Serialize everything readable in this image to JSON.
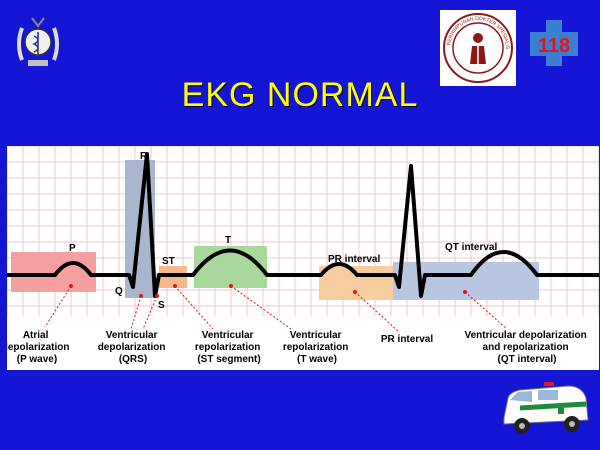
{
  "slide": {
    "title": "EKG NORMAL",
    "background_color": "#1515d6",
    "title_color": "#ffff00"
  },
  "logos": {
    "left": "medical-emblem-icon",
    "center": "doctor-association-seal-icon",
    "right": "emergency-118-logo-icon",
    "bottom_right": "ambulance-icon"
  },
  "center_seal_text": "PERHIMPUNAN DOKTER SPESIALIS",
  "right_logo_text": "118",
  "ekg": {
    "labels": {
      "p": "P",
      "r": "R",
      "q": "Q",
      "s": "S",
      "st": "ST",
      "t": "T",
      "pr_interval": "PR interval",
      "qt_interval": "QT interval"
    },
    "captions": {
      "atrial": [
        "Atrial",
        "depolarization",
        "(P wave)"
      ],
      "qrs": [
        "Ventricular",
        "depolarization",
        "(QRS)"
      ],
      "st": [
        "Ventricular",
        "repolarization",
        "(ST segment)"
      ],
      "t": [
        "Ventricular",
        "repolarization",
        "(T wave)"
      ],
      "pr": [
        "PR interval"
      ],
      "qt": [
        "Ventricular depolarization",
        "and repolarization",
        "(QT interval)"
      ]
    },
    "colors": {
      "p_wave": "#f4a0a0",
      "qrs": "#aab5d0",
      "st": "#f5b98a",
      "t_wave": "#a8d89a",
      "pr_interval": "#f7cc9e",
      "qt_interval": "#b9c6e2",
      "grid": "#f0c7cf",
      "trace": "#000000",
      "pointer": "#e01818"
    }
  }
}
